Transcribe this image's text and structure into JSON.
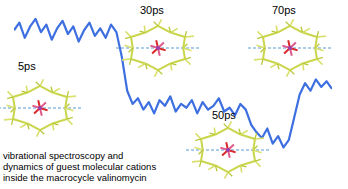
{
  "chart_data": {
    "type": "line",
    "x": [
      0,
      1,
      2,
      3,
      4,
      5,
      6,
      7,
      8,
      9,
      10,
      11,
      12,
      13,
      14,
      15,
      16,
      17,
      18,
      19,
      20,
      21,
      22,
      23,
      24,
      25,
      26,
      27,
      28,
      29,
      30,
      31,
      32,
      33,
      34,
      35,
      36,
      37,
      38,
      39,
      40,
      41,
      42,
      43,
      44,
      45,
      46,
      47,
      48,
      49,
      50,
      51,
      52,
      53,
      54,
      55,
      56,
      57,
      58,
      59
    ],
    "values": [
      84,
      88,
      80,
      86,
      90,
      83,
      87,
      79,
      85,
      89,
      82,
      86,
      78,
      84,
      88,
      81,
      85,
      80,
      87,
      83,
      70,
      52,
      45,
      48,
      42,
      46,
      40,
      47,
      44,
      49,
      41,
      45,
      43,
      47,
      40,
      46,
      42,
      44,
      48,
      41,
      43,
      39,
      45,
      42,
      34,
      30,
      27,
      32,
      24,
      28,
      22,
      26,
      38,
      50,
      56,
      52,
      58,
      54,
      57,
      53
    ],
    "color": "#3d6fe0",
    "xlim": [
      0,
      59
    ],
    "ylim": [
      0,
      100
    ],
    "tick_labels": false,
    "annotations": [
      "5ps",
      "30ps",
      "50ps",
      "70ps"
    ],
    "caption": [
      "vibrational spectroscopy and",
      "dynamics of guest molecular cations",
      "inside the macrocycle valinomycin"
    ]
  }
}
